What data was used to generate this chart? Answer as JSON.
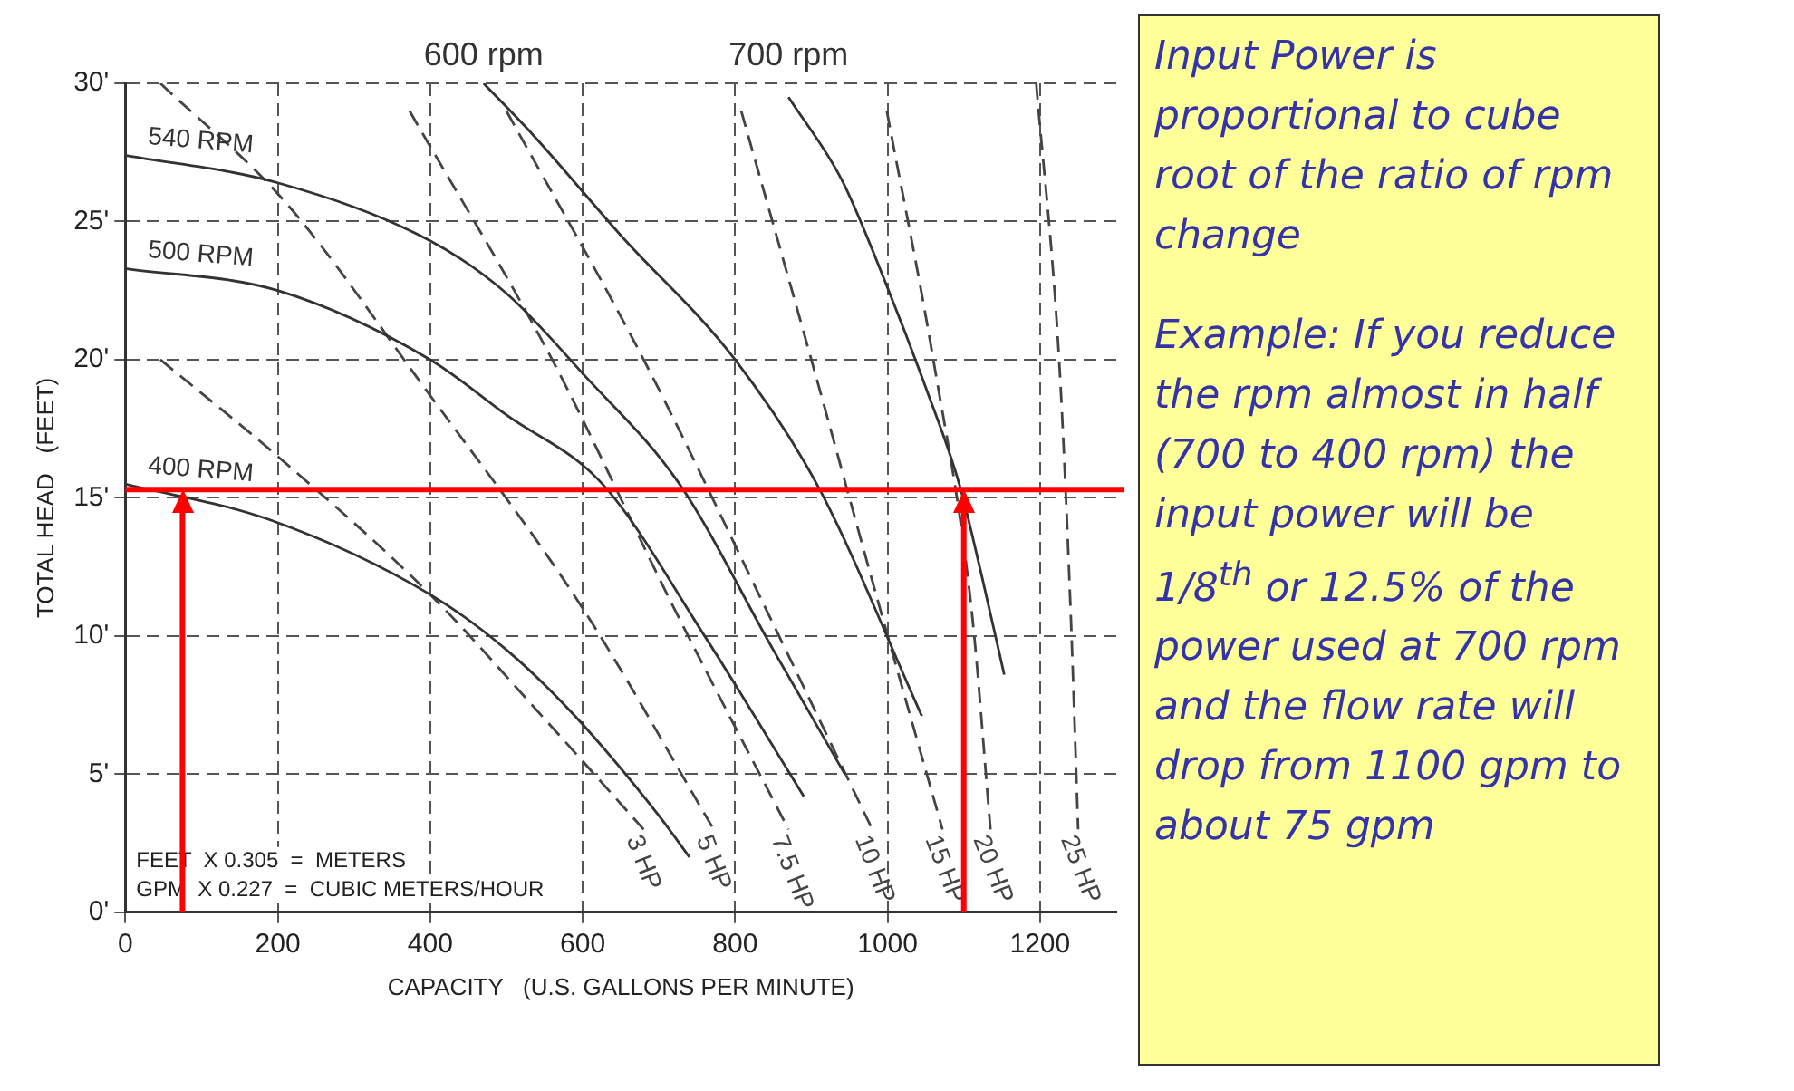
{
  "chart_data": {
    "type": "line",
    "xlabel": "CAPACITY   (U.S. GALLONS PER MINUTE)",
    "ylabel": "TOTAL HEAD   (FEET)",
    "xlim": [
      0,
      1300
    ],
    "xticks": [
      0,
      200,
      400,
      600,
      800,
      1000,
      1200
    ],
    "ylim": [
      0,
      30
    ],
    "yticks": [
      {
        "value": 0,
        "label": "0'"
      },
      {
        "value": 5,
        "label": "5'"
      },
      {
        "value": 10,
        "label": "10'"
      },
      {
        "value": 15,
        "label": "15'"
      },
      {
        "value": 20,
        "label": "20'"
      },
      {
        "value": 25,
        "label": "25'"
      },
      {
        "value": 30,
        "label": "30'"
      }
    ],
    "grid": true,
    "legend": false,
    "marker": "none",
    "series": [
      {
        "name": "540 RPM",
        "color": "#333333",
        "line_style": "solid",
        "x": [
          0,
          200,
          400,
          500,
          600,
          727,
          850,
          944
        ],
        "values": [
          27.4,
          26.4,
          24.3,
          22.4,
          19.5,
          15.5,
          9.5,
          5
        ]
      },
      {
        "name": "500 RPM",
        "color": "#333333",
        "line_style": "solid",
        "x": [
          0,
          200,
          400,
          500,
          626,
          760,
          890
        ],
        "values": [
          23.3,
          22.5,
          20,
          18,
          15.5,
          10,
          4.2
        ]
      },
      {
        "name": "400 RPM",
        "color": "#333333",
        "line_style": "solid",
        "x": [
          0,
          190,
          400,
          500,
          590,
          700,
          740
        ],
        "values": [
          15.5,
          14.2,
          11.5,
          9.5,
          7.1,
          3.5,
          2
        ]
      },
      {
        "name": "600 rpm",
        "color": "#333333",
        "line_style": "solid",
        "x": [
          470,
          536,
          650,
          800,
          909,
          1045
        ],
        "values": [
          30,
          28.1,
          24.5,
          20,
          15.4,
          7.1
        ]
      },
      {
        "name": "700 rpm",
        "color": "#333333",
        "line_style": "solid",
        "x": [
          870,
          940,
          1000,
          1050,
          1094,
          1125,
          1153
        ],
        "values": [
          29.5,
          26.5,
          22.6,
          19,
          15.5,
          12,
          8.6
        ]
      },
      {
        "name": "3 HP",
        "color": "#444444",
        "line_style": "dashed",
        "x": [
          46,
          200,
          400,
          550,
          680
        ],
        "values": [
          20,
          16.5,
          11.5,
          7,
          3
        ]
      },
      {
        "name": "5 HP",
        "color": "#444444",
        "line_style": "dashed",
        "x": [
          46,
          210,
          392,
          600,
          772
        ],
        "values": [
          30,
          25.7,
          19,
          11,
          3
        ]
      },
      {
        "name": "7.5 HP",
        "color": "#444444",
        "line_style": "dashed",
        "x": [
          373,
          560,
          720,
          870
        ],
        "values": [
          29,
          20,
          11,
          3
        ]
      },
      {
        "name": "10 HP",
        "color": "#444444",
        "line_style": "dashed",
        "x": [
          500,
          680,
          840,
          980
        ],
        "values": [
          29,
          20,
          11,
          3
        ]
      },
      {
        "name": "15 HP",
        "color": "#444444",
        "line_style": "dashed",
        "x": [
          808,
          900,
          990,
          1072
        ],
        "values": [
          29,
          20,
          11,
          3
        ]
      },
      {
        "name": "20 HP",
        "color": "#444444",
        "line_style": "dashed",
        "x": [
          999,
          1060,
          1110,
          1135
        ],
        "values": [
          29,
          20,
          11,
          3
        ]
      },
      {
        "name": "25 HP",
        "color": "#444444",
        "line_style": "dashed",
        "x": [
          1195,
          1225,
          1240,
          1250
        ],
        "values": [
          30,
          20,
          11,
          3
        ]
      }
    ],
    "ref_lines": [
      {
        "axis": "y",
        "value": 15.3,
        "color": "#ff0000"
      },
      {
        "axis": "x",
        "value": 75,
        "color": "#ff0000"
      },
      {
        "axis": "x",
        "value": 1100,
        "color": "#ff0000"
      }
    ],
    "annotations": [
      "FEET  X 0.305  =  METERS",
      "GPM  X 0.227  =  CUBIC METERS/HOUR",
      "Input Power is proportional to cube root of the ratio of rpm change",
      "Example: If you reduce the rpm almost in half (700 to 400 rpm) the input power will be 1/8$^{th}$ or 12.5% of the power used at 700 rpm and the flow rate will drop from 1100 gpm to about 75 gpm"
    ]
  }
}
